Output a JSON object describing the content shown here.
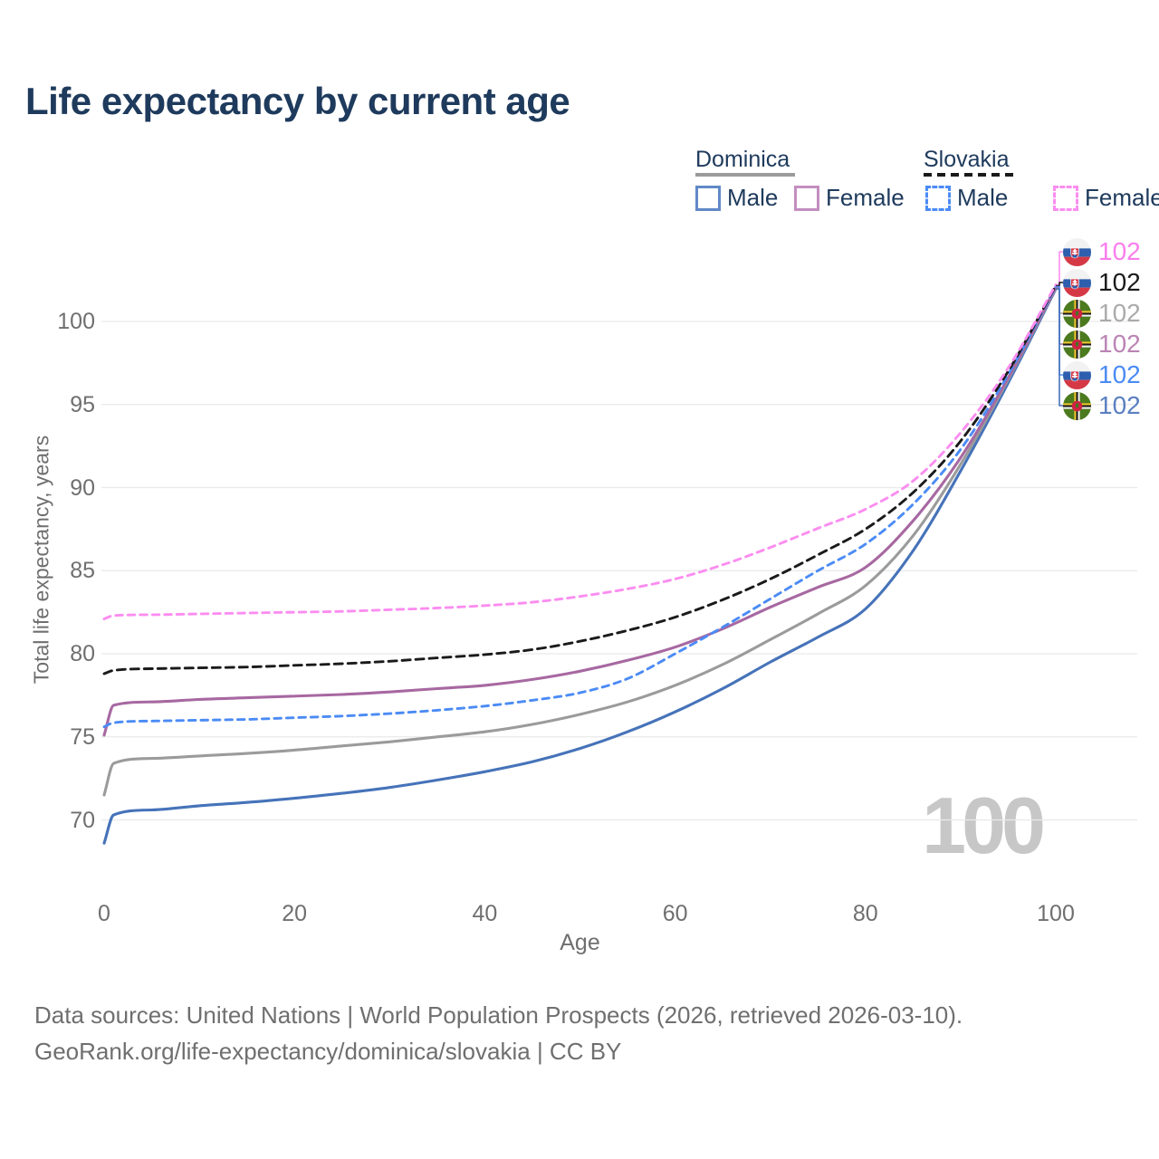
{
  "title": "Life expectancy by current age",
  "legend": {
    "groups": [
      {
        "country": "Dominica",
        "line_style": "solid",
        "underline_color": "#9b9b9b",
        "items": [
          {
            "label": "Male",
            "color": "#6189c7",
            "dashed": false
          },
          {
            "label": "Female",
            "color": "#c38ec0",
            "dashed": false
          }
        ]
      },
      {
        "country": "Slovakia",
        "line_style": "dashed",
        "underline_color": "#1a1a1a",
        "items": [
          {
            "label": "Male",
            "color": "#4b8bf5",
            "dashed": true
          },
          {
            "label": "Female",
            "color": "#fb8df0",
            "dashed": true
          }
        ]
      }
    ]
  },
  "chart_data": {
    "type": "line",
    "title": "Life expectancy by current age",
    "xlabel": "Age",
    "ylabel": "Total life expectancy, years",
    "xlim": [
      0,
      100
    ],
    "ylim": [
      67,
      103
    ],
    "x_ticks": [
      0,
      20,
      40,
      60,
      80,
      100
    ],
    "y_ticks": [
      70,
      75,
      80,
      85,
      90,
      95,
      100
    ],
    "grid": "horizontal",
    "legend_position": "top-right",
    "ages": [
      0,
      1,
      5,
      10,
      15,
      20,
      25,
      30,
      35,
      40,
      45,
      50,
      55,
      60,
      65,
      70,
      75,
      80,
      85,
      90,
      95,
      100
    ],
    "series": [
      {
        "name": "dominica_male",
        "country": "Dominica",
        "sex": "Male",
        "color": "#4673b9",
        "dashed": false,
        "values": [
          68.6,
          70.3,
          70.6,
          70.85,
          71.05,
          71.3,
          71.6,
          71.95,
          72.4,
          72.9,
          73.5,
          74.3,
          75.3,
          76.5,
          77.9,
          79.5,
          81.0,
          82.7,
          86.2,
          91.0,
          96.3,
          101.95
        ]
      },
      {
        "name": "dominica_total",
        "country": "Dominica",
        "sex": "Both",
        "color": "#9b9b9b",
        "dashed": false,
        "values": [
          71.5,
          73.4,
          73.7,
          73.85,
          74.0,
          74.2,
          74.45,
          74.7,
          75.0,
          75.3,
          75.75,
          76.35,
          77.1,
          78.1,
          79.35,
          80.85,
          82.4,
          84.1,
          87.1,
          91.4,
          96.5,
          102.0
        ]
      },
      {
        "name": "dominica_female",
        "country": "Dominica",
        "sex": "Female",
        "color": "#a768a1",
        "dashed": false,
        "values": [
          75.1,
          76.9,
          77.1,
          77.25,
          77.35,
          77.45,
          77.55,
          77.7,
          77.9,
          78.1,
          78.45,
          78.95,
          79.6,
          80.4,
          81.5,
          82.8,
          84.0,
          85.2,
          88.0,
          91.8,
          96.6,
          102.05
        ]
      },
      {
        "name": "slovakia_male",
        "country": "Slovakia",
        "sex": "Male",
        "color": "#4b8bf5",
        "dashed": true,
        "values": [
          75.6,
          75.85,
          75.95,
          76.0,
          76.05,
          76.15,
          76.25,
          76.4,
          76.6,
          76.85,
          77.2,
          77.65,
          78.5,
          80.0,
          81.6,
          83.3,
          85.0,
          86.6,
          89.0,
          92.3,
          96.8,
          102.1
        ]
      },
      {
        "name": "slovakia_total",
        "country": "Slovakia",
        "sex": "Both",
        "color": "#1a1a1a",
        "dashed": true,
        "values": [
          78.8,
          79.0,
          79.1,
          79.15,
          79.2,
          79.3,
          79.4,
          79.55,
          79.75,
          79.95,
          80.25,
          80.75,
          81.4,
          82.2,
          83.25,
          84.5,
          85.95,
          87.5,
          89.7,
          92.8,
          97.0,
          102.15
        ]
      },
      {
        "name": "slovakia_female",
        "country": "Slovakia",
        "sex": "Female",
        "color": "#fb8df0",
        "dashed": true,
        "values": [
          82.1,
          82.3,
          82.35,
          82.4,
          82.45,
          82.5,
          82.55,
          82.65,
          82.75,
          82.9,
          83.1,
          83.45,
          83.9,
          84.5,
          85.35,
          86.4,
          87.55,
          88.7,
          90.4,
          93.3,
          97.2,
          102.2
        ]
      }
    ]
  },
  "right_labels": [
    {
      "value": "102",
      "series": "slovakia_female",
      "country": "Slovakia",
      "color": "#fa7ded"
    },
    {
      "value": "102",
      "series": "slovakia_total",
      "country": "Slovakia",
      "color": "#1a1a1a"
    },
    {
      "value": "102",
      "series": "dominica_total",
      "country": "Dominica",
      "color": "#ababab"
    },
    {
      "value": "102",
      "series": "dominica_female",
      "country": "Dominica",
      "color": "#bb84b4"
    },
    {
      "value": "102",
      "series": "slovakia_male",
      "country": "Slovakia",
      "color": "#4b8bf5"
    },
    {
      "value": "102",
      "series": "dominica_male",
      "country": "Dominica",
      "color": "#5a7fc0"
    }
  ],
  "watermark": "100",
  "footer": {
    "line1": "Data sources: United Nations | World Population Prospects (2026, retrieved 2026-03-10).",
    "line2": "GeoRank.org/life-expectancy/dominica/slovakia | CC BY"
  }
}
